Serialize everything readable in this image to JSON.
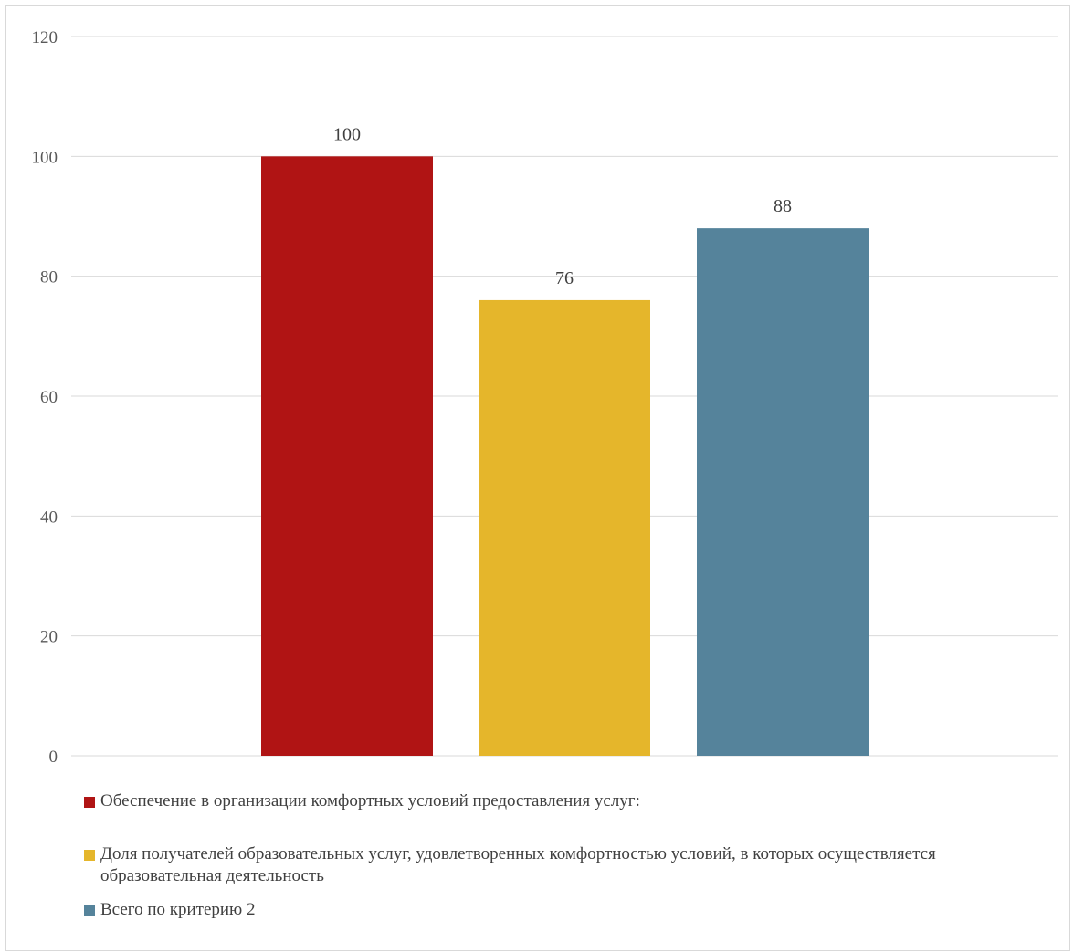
{
  "chart_data": {
    "type": "bar",
    "categories": [
      ""
    ],
    "series": [
      {
        "name": "Обеспечение в организации комфортных условий предоставления услуг:",
        "values": [
          100
        ],
        "color": "#b01414"
      },
      {
        "name": "Доля получателей образовательных услуг, удовлетворенных комфортностью условий, в которых осуществляется образовательная деятельность",
        "values": [
          76
        ],
        "color": "#e5b62b"
      },
      {
        "name": "Всего по критерию 2",
        "values": [
          88
        ],
        "color": "#55839b"
      }
    ],
    "data_labels": [
      "100",
      "76",
      "88"
    ],
    "yticks": [
      "0",
      "20",
      "40",
      "60",
      "80",
      "100",
      "120"
    ],
    "ylim": [
      0,
      120
    ],
    "title": "",
    "xlabel": "",
    "ylabel": "",
    "grid": true,
    "legend_position": "bottom"
  }
}
